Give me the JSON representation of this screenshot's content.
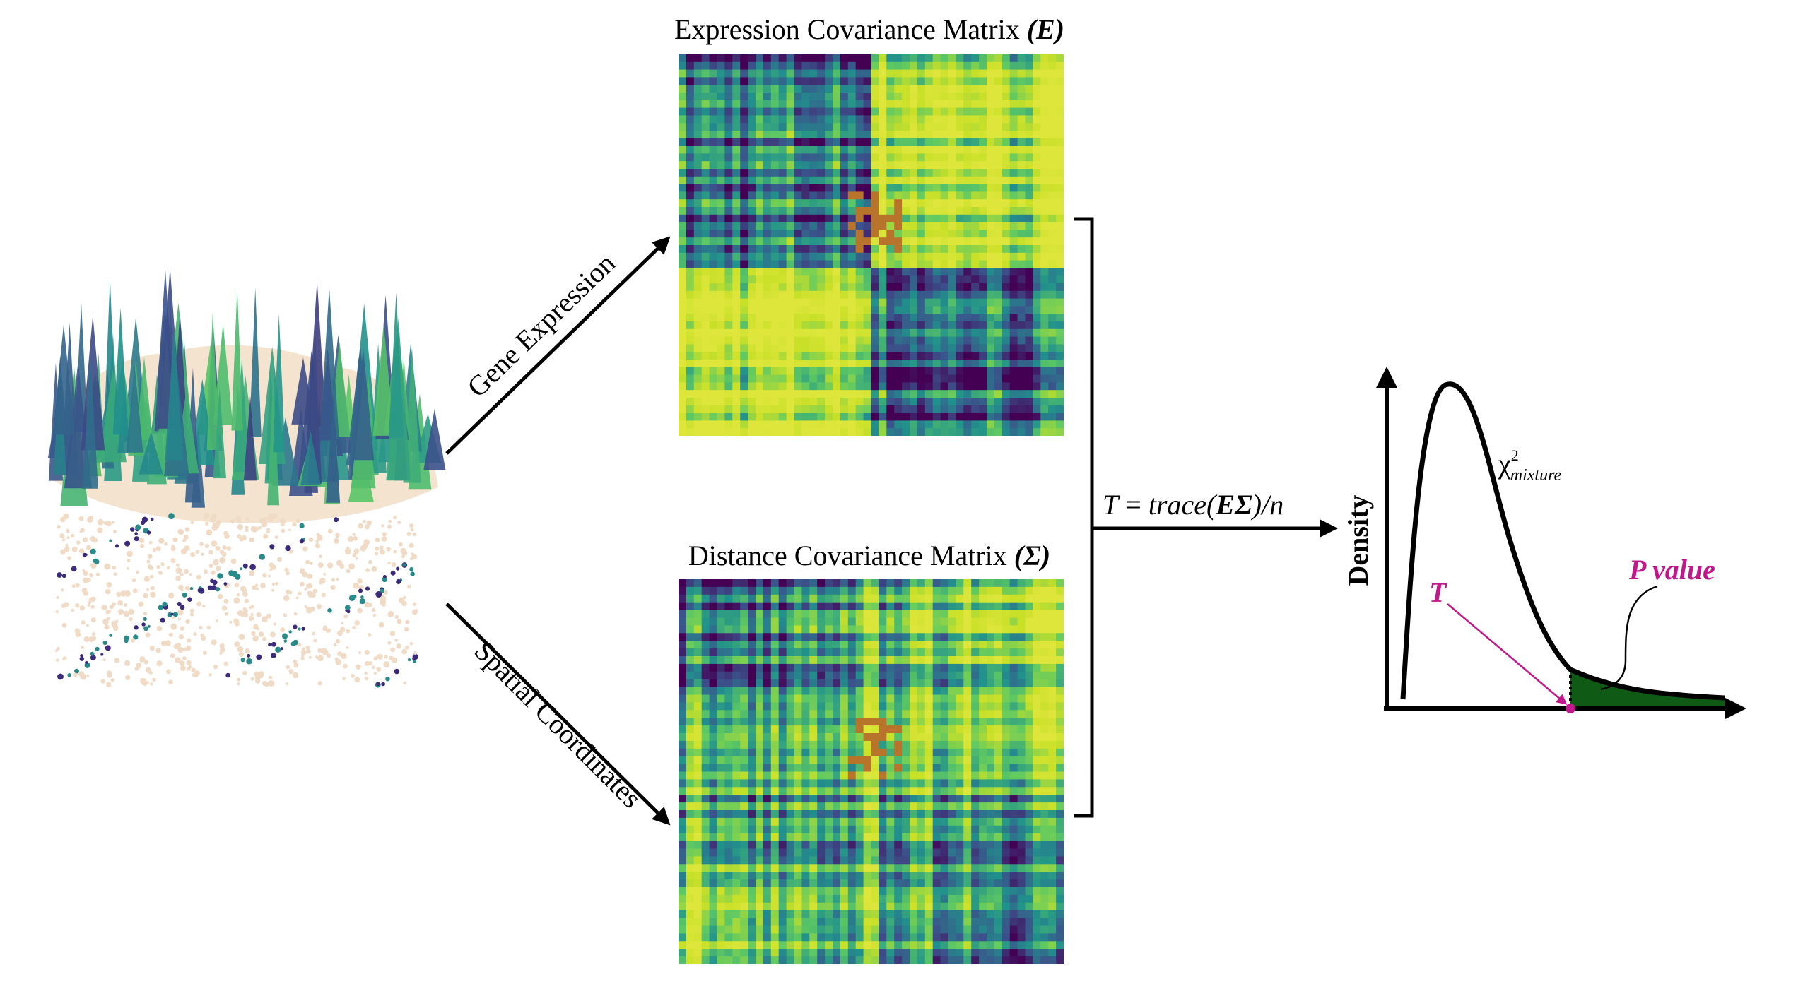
{
  "matrices": {
    "expression": {
      "title": "Expression Covariance Matrix ",
      "symbol": "(E)"
    },
    "distance": {
      "title": "Distance Covariance Matrix ",
      "symbol": "(Σ)"
    }
  },
  "arrows": {
    "gene_expression": "Gene Expression",
    "spatial_coordinates": "Spatial Coordinates"
  },
  "statistic": {
    "lhs": "T",
    "eq": " = ",
    "trace": "trace(",
    "bold": "EΣ",
    "rest": ")/n"
  },
  "density_plot": {
    "ylabel": "Density",
    "chi": "χ",
    "sup": "2",
    "sub": "mixture",
    "t_label": "T",
    "p_label": "P value"
  },
  "colors": {
    "viridis_dark": "#3b2b7a",
    "viridis_teal": "#2a8a8a",
    "viridis_yellow": "#d8e43a",
    "accent_magenta": "#c0198c",
    "tail_green": "#0f5a14",
    "tissue_beige": "#f3e3cf"
  }
}
